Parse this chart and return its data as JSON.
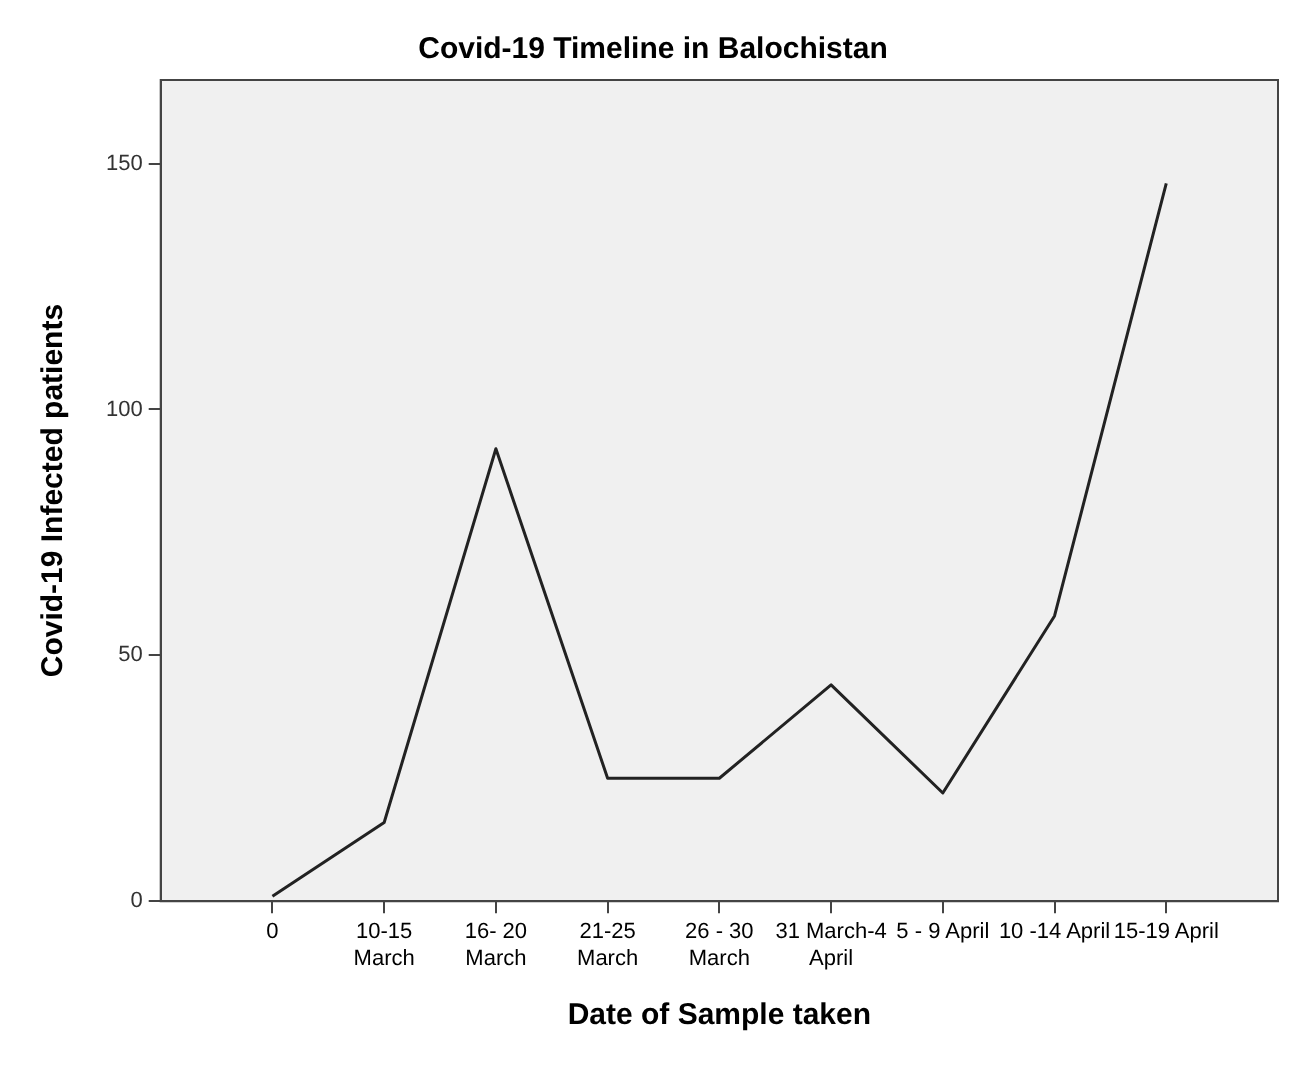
{
  "chart_data": {
    "type": "line",
    "title": "Covid-19 Timeline in Balochistan",
    "xlabel": "Date of Sample taken",
    "ylabel": "Covid-19 Infected patients",
    "categories": [
      "0",
      "10-15 March",
      "16- 20 March",
      "21-25 March",
      "26 - 30 March",
      "31 March-4 April",
      "5 - 9 April",
      "10 -14 April",
      "15-19 April"
    ],
    "series": [
      {
        "color": "#222222",
        "values": [
          1,
          16,
          92,
          25,
          25,
          44,
          22,
          58,
          146
        ]
      }
    ],
    "ylim": [
      0,
      167
    ],
    "yticks": [
      0,
      50,
      100,
      150
    ],
    "grid": false,
    "legend": false,
    "marker": "none",
    "line_style": "solid"
  }
}
